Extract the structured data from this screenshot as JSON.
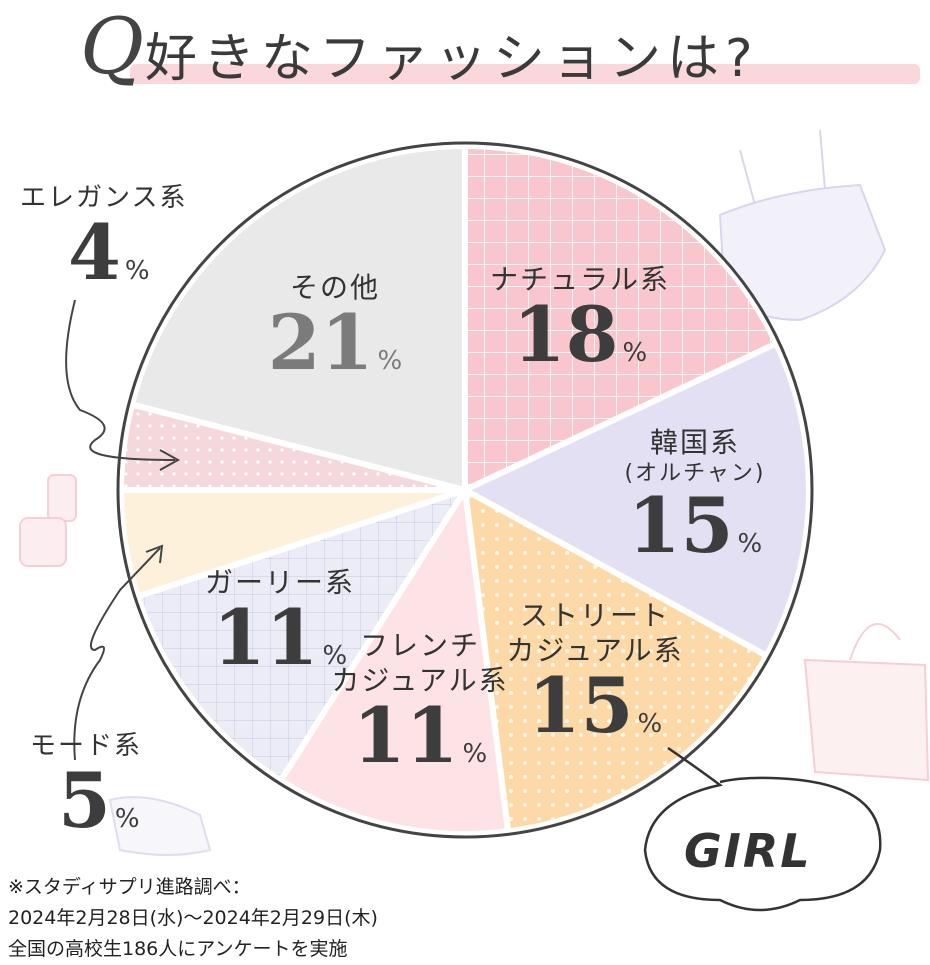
{
  "title": {
    "prefix": "Q",
    "text": "好きなファッションは?"
  },
  "chart_data": {
    "type": "pie",
    "title": "好きなファッションは?",
    "unit": "%",
    "slices": [
      {
        "label": "ナチュラル系",
        "value": 18,
        "color": "#f8c6cc"
      },
      {
        "label": "韓国系(オルチャン)",
        "value": 15,
        "color": "#e3e0f4"
      },
      {
        "label": "ストリートカジュアル系",
        "value": 15,
        "color": "#fcd9a6"
      },
      {
        "label": "フレンチカジュアル系",
        "value": 11,
        "color": "#fde3e6"
      },
      {
        "label": "ガーリー系",
        "value": 11,
        "color": "#ececf7"
      },
      {
        "label": "モード系",
        "value": 5,
        "color": "#fdf1dc"
      },
      {
        "label": "エレガンス系",
        "value": 4,
        "color": "#f5d8dc"
      },
      {
        "label": "その他",
        "value": 21,
        "color": "#e9e9e9"
      }
    ]
  },
  "labels": {
    "natural": {
      "name": "ナチュラル系",
      "value": "18",
      "pct": "%"
    },
    "korean": {
      "name": "韓国系",
      "sub": "(オルチャン)",
      "value": "15",
      "pct": "%"
    },
    "street": {
      "name1": "ストリート",
      "name2": "カジュアル系",
      "value": "15",
      "pct": "%"
    },
    "french": {
      "name1": "フレンチ",
      "name2": "カジュアル系",
      "value": "11",
      "pct": "%"
    },
    "girly": {
      "name": "ガーリー系",
      "value": "11",
      "pct": "%"
    },
    "mode": {
      "name": "モード系",
      "value": "5",
      "pct": "%"
    },
    "elegance": {
      "name": "エレガンス系",
      "value": "4",
      "pct": "%"
    },
    "other": {
      "name": "その他",
      "value": "21",
      "pct": "%"
    }
  },
  "bubble": "GIRL",
  "note": {
    "line1": "※スタディサプリ進路調べ：",
    "line2": "2024年2月28日(水)〜2024年2月29日(木)",
    "line3": "全国の高校生186人にアンケートを実施"
  }
}
